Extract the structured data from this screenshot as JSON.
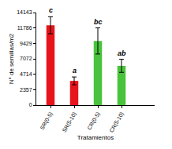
{
  "chart_data": {
    "type": "bar",
    "categories": [
      "SR(0-5)",
      "SR(5-10)",
      "CR(0-5)",
      "CR(5-10)"
    ],
    "values": [
      12200,
      3700,
      9800,
      6000
    ],
    "errors": [
      1300,
      600,
      2000,
      1000
    ],
    "annotations": [
      "c",
      "a",
      "bc",
      "ab"
    ],
    "colors": [
      "#e8141b",
      "#e8141b",
      "#49c33b",
      "#49c33b"
    ],
    "x_label": "Tratamientos",
    "y_label": "N° de semillas/m2",
    "ylim": [
      0,
      14143
    ],
    "yticks": [
      0,
      2357,
      4714,
      7072,
      9429,
      11786,
      14143
    ],
    "grid": false
  }
}
